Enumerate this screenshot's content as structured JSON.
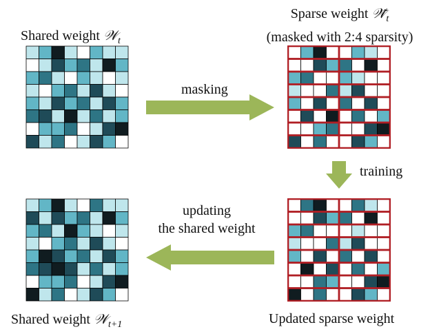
{
  "labels": {
    "shared_top": {
      "prefix": "Shared weight ",
      "symbol": "𝒲",
      "subscript": "t"
    },
    "sparse_line1": {
      "prefix": "Sparse weight ",
      "symbol": "𝒲̃",
      "subscript": "t"
    },
    "sparse_line2": "(masked with 2:4 sparsity)",
    "masking": "masking",
    "training": "training",
    "updating_line1": "updating",
    "updating_line2": "the shared weight",
    "shared_bottom": {
      "prefix": "Shared weight ",
      "symbol": "𝒲",
      "subscript": "t+1"
    },
    "updated_sparse": "Updated sparse weight"
  },
  "colors": {
    "levels": [
      "#ffffff",
      "#bfe6ec",
      "#62b6c6",
      "#2e7585",
      "#1f4b58",
      "#101c20"
    ],
    "grid_line": "#000000",
    "mask_border": "#b01e24",
    "arrow": "#9cb659"
  },
  "matrices": {
    "shared_t": [
      [
        1,
        2,
        5,
        1,
        0,
        2,
        1,
        1
      ],
      [
        0,
        1,
        4,
        2,
        3,
        1,
        5,
        2
      ],
      [
        2,
        3,
        1,
        0,
        2,
        1,
        0,
        1
      ],
      [
        1,
        0,
        2,
        3,
        1,
        4,
        1,
        0
      ],
      [
        2,
        1,
        4,
        2,
        3,
        1,
        4,
        2
      ],
      [
        3,
        4,
        1,
        5,
        1,
        3,
        1,
        2
      ],
      [
        0,
        2,
        2,
        3,
        0,
        1,
        4,
        5
      ],
      [
        4,
        1,
        3,
        0,
        1,
        4,
        2,
        0
      ]
    ],
    "sparse_t": [
      [
        0,
        2,
        5,
        0,
        0,
        2,
        1,
        0
      ],
      [
        0,
        0,
        4,
        2,
        3,
        0,
        5,
        0
      ],
      [
        2,
        3,
        0,
        0,
        2,
        1,
        0,
        0
      ],
      [
        1,
        0,
        0,
        3,
        1,
        4,
        0,
        0
      ],
      [
        2,
        0,
        4,
        0,
        3,
        0,
        4,
        0
      ],
      [
        0,
        4,
        0,
        5,
        0,
        3,
        0,
        2
      ],
      [
        0,
        0,
        2,
        3,
        0,
        0,
        4,
        5
      ],
      [
        4,
        0,
        3,
        0,
        0,
        4,
        2,
        0
      ]
    ],
    "shared_t1": [
      [
        1,
        2,
        5,
        1,
        0,
        3,
        1,
        1
      ],
      [
        4,
        1,
        4,
        2,
        3,
        1,
        5,
        2
      ],
      [
        2,
        3,
        1,
        5,
        2,
        1,
        0,
        1
      ],
      [
        1,
        0,
        2,
        3,
        1,
        4,
        1,
        0
      ],
      [
        2,
        5,
        4,
        2,
        3,
        1,
        4,
        2
      ],
      [
        3,
        4,
        5,
        4,
        1,
        3,
        1,
        2
      ],
      [
        0,
        2,
        2,
        3,
        0,
        1,
        4,
        5
      ],
      [
        5,
        1,
        3,
        0,
        1,
        4,
        2,
        0
      ]
    ],
    "updated_sparse": [
      [
        0,
        3,
        5,
        0,
        0,
        3,
        1,
        0
      ],
      [
        0,
        0,
        4,
        2,
        3,
        0,
        5,
        0
      ],
      [
        2,
        3,
        0,
        0,
        0,
        1,
        0,
        0
      ],
      [
        1,
        0,
        0,
        3,
        1,
        4,
        0,
        0
      ],
      [
        2,
        0,
        4,
        0,
        3,
        0,
        4,
        0
      ],
      [
        0,
        5,
        0,
        4,
        0,
        3,
        0,
        2
      ],
      [
        0,
        0,
        3,
        2,
        0,
        0,
        4,
        5
      ],
      [
        5,
        0,
        3,
        0,
        0,
        4,
        2,
        0
      ]
    ]
  }
}
